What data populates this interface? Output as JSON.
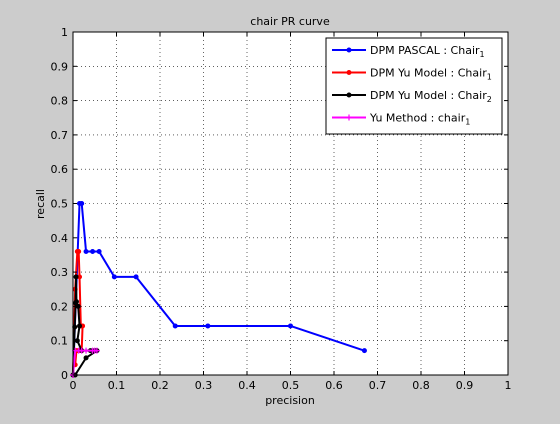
{
  "chart_data": {
    "type": "line",
    "title": "chair PR curve",
    "xlabel": "precision",
    "ylabel": "recall",
    "xlim": [
      0,
      1
    ],
    "ylim": [
      0,
      1
    ],
    "xticks": [
      "0",
      "0.1",
      "0.2",
      "0.3",
      "0.4",
      "0.5",
      "0.6",
      "0.7",
      "0.8",
      "0.9",
      "1"
    ],
    "yticks": [
      "0",
      "0.1",
      "0.2",
      "0.3",
      "0.4",
      "0.5",
      "0.6",
      "0.7",
      "0.8",
      "0.9",
      "1"
    ],
    "grid": true,
    "legend_position": "top-right",
    "series": [
      {
        "name": "DPM PASCAL : Chair",
        "subscript": "1",
        "color": "#0000ff",
        "marker": "dot",
        "points": [
          [
            0.0,
            0.0
          ],
          [
            0.015,
            0.5
          ],
          [
            0.02,
            0.5
          ],
          [
            0.03,
            0.36
          ],
          [
            0.045,
            0.36
          ],
          [
            0.06,
            0.36
          ],
          [
            0.095,
            0.286
          ],
          [
            0.145,
            0.286
          ],
          [
            0.235,
            0.143
          ],
          [
            0.31,
            0.143
          ],
          [
            0.5,
            0.143
          ],
          [
            0.67,
            0.071
          ]
        ]
      },
      {
        "name": "DPM Yu Model : Chair",
        "subscript": "1",
        "color": "#ff0000",
        "marker": "dot",
        "points": [
          [
            0.0,
            0.0
          ],
          [
            0.005,
            0.25
          ],
          [
            0.01,
            0.36
          ],
          [
            0.013,
            0.36
          ],
          [
            0.015,
            0.286
          ],
          [
            0.018,
            0.143
          ],
          [
            0.022,
            0.143
          ],
          [
            0.02,
            0.071
          ],
          [
            0.013,
            0.071
          ],
          [
            0.008,
            0.071
          ],
          [
            0.005,
            0.03
          ]
        ]
      },
      {
        "name": "DPM Yu Model : Chair",
        "subscript": "2",
        "color": "#000000",
        "marker": "dot",
        "points": [
          [
            0.0,
            0.0
          ],
          [
            0.004,
            0.14
          ],
          [
            0.006,
            0.21
          ],
          [
            0.007,
            0.286
          ],
          [
            0.008,
            0.214
          ],
          [
            0.012,
            0.2
          ],
          [
            0.015,
            0.143
          ],
          [
            0.01,
            0.1
          ],
          [
            0.02,
            0.071
          ],
          [
            0.04,
            0.071
          ],
          [
            0.05,
            0.071
          ],
          [
            0.055,
            0.071
          ],
          [
            0.03,
            0.05
          ],
          [
            0.005,
            0.0
          ]
        ]
      },
      {
        "name": "Yu Method : chair",
        "subscript": "1",
        "color": "#ff00ff",
        "marker": "plus",
        "points": [
          [
            0.0,
            0.0
          ],
          [
            0.005,
            0.071
          ],
          [
            0.013,
            0.071
          ],
          [
            0.02,
            0.071
          ],
          [
            0.03,
            0.071
          ],
          [
            0.045,
            0.071
          ],
          [
            0.05,
            0.071
          ],
          [
            0.055,
            0.071
          ]
        ]
      }
    ]
  }
}
